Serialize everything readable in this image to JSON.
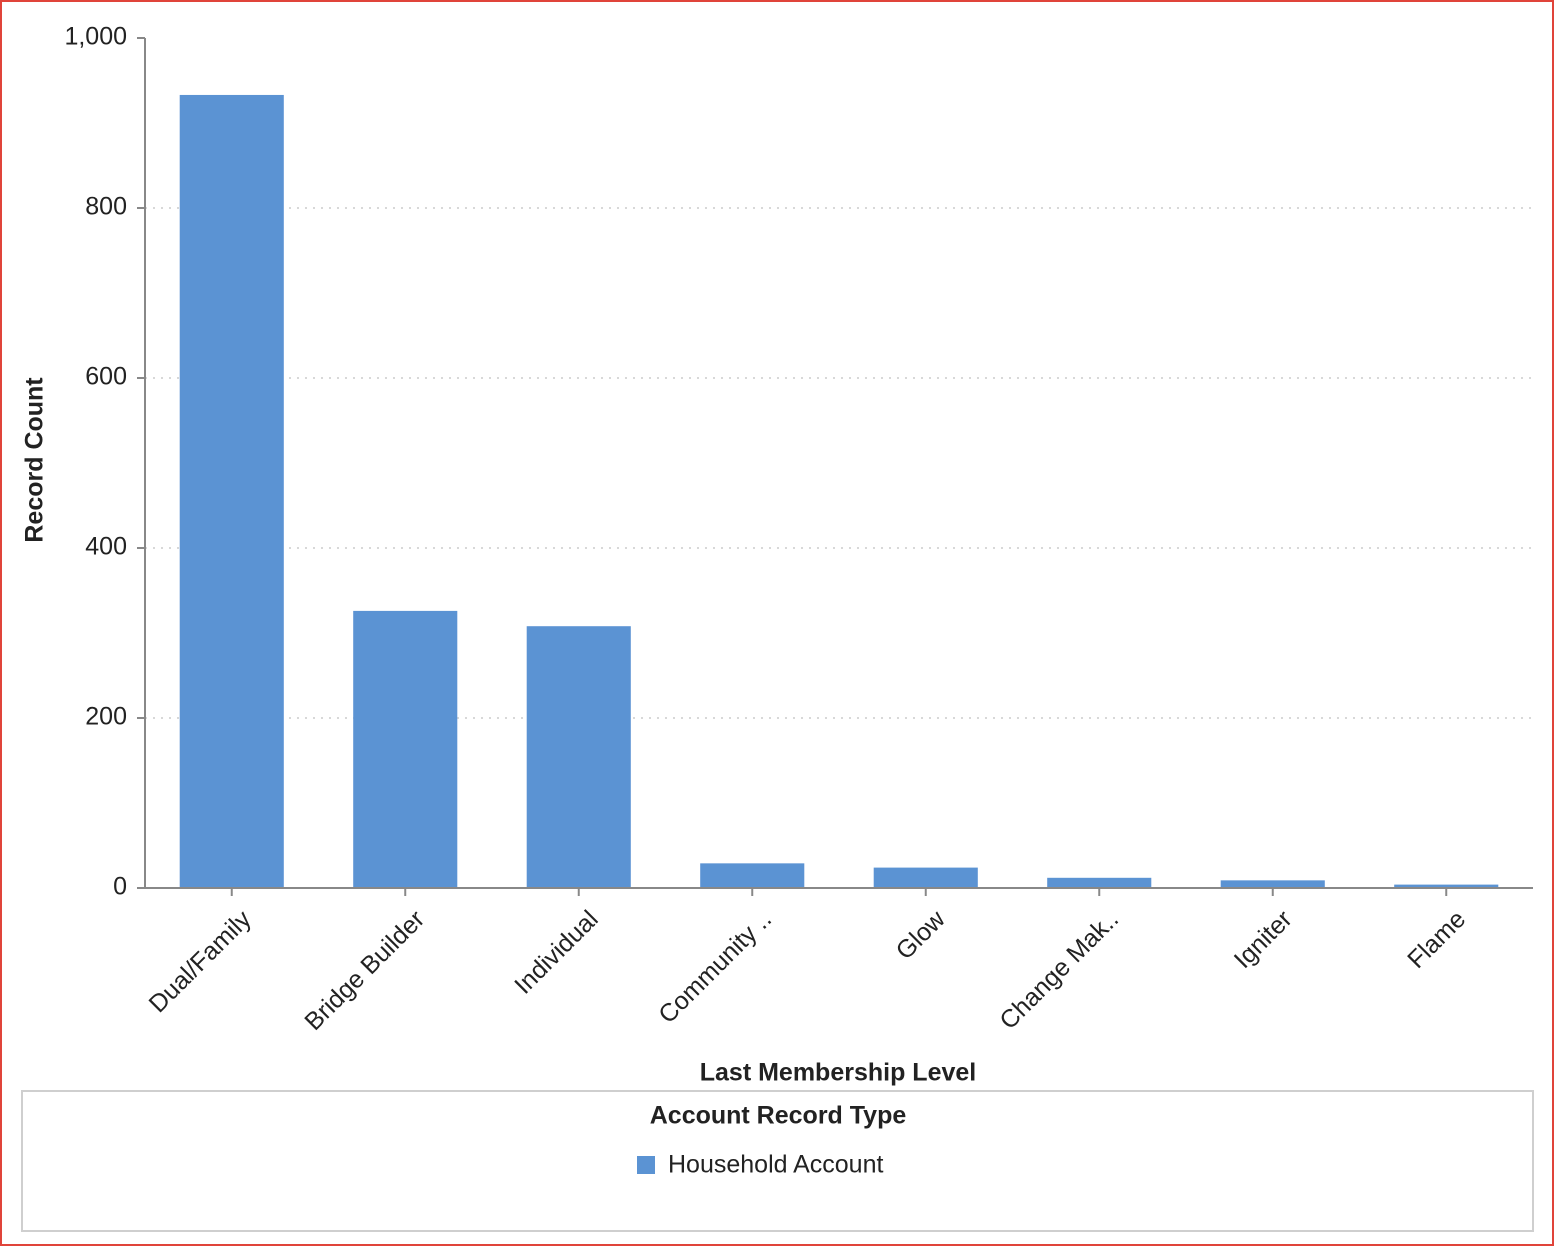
{
  "chart_data": {
    "type": "bar",
    "x_label": "Last Membership Level",
    "y_label": "Record Count",
    "categories": [
      "Dual/Family",
      "Bridge Builder",
      "Individual",
      "Community ..",
      "Glow",
      "Change Mak..",
      "Igniter",
      "Flame"
    ],
    "series": [
      {
        "name": "Household Account",
        "color": "#5b93d3",
        "values": [
          933,
          326,
          308,
          29,
          24,
          12,
          9,
          4
        ]
      }
    ],
    "legend_title": "Account Record Type",
    "legend_position": "bottom",
    "ylim": [
      0,
      1000
    ],
    "yticks": [
      0,
      200,
      400,
      600,
      800,
      {
        "value": 1000,
        "label": "1,000"
      }
    ],
    "grid": true
  }
}
